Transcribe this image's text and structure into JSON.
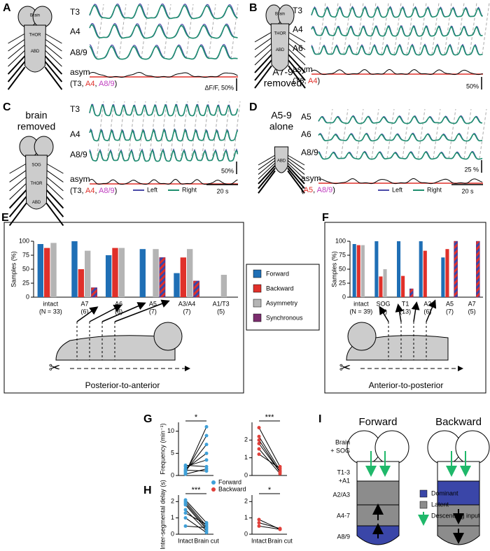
{
  "panels": {
    "A": {
      "label": "A",
      "cartoon": [
        "Brain",
        "THOR",
        "ABD"
      ],
      "traces": [
        "T3",
        "A4",
        "A8/9"
      ],
      "asym": "asym",
      "asym_parts": [
        "(T3, ",
        "A4",
        ", ",
        "A8/9",
        ")"
      ],
      "asym_colors": [
        "#000000",
        "#e0302a",
        "#000000",
        "#c040c0",
        "#000000"
      ],
      "scale": "ΔF/F, 50%"
    },
    "B": {
      "label": "B",
      "title": [
        "A7-9",
        "removed"
      ],
      "cartoon": [
        "Brain",
        "THOR",
        "ABD"
      ],
      "traces": [
        "T3",
        "A4",
        "A6"
      ],
      "asym": "asym",
      "asym_parts": [
        "(T3, ",
        "A4",
        ")"
      ],
      "asym_colors": [
        "#000000",
        "#e0302a",
        "#000000"
      ],
      "scale": "50%"
    },
    "C": {
      "label": "C",
      "title": [
        "brain",
        "removed"
      ],
      "cartoon": [
        "SOG",
        "THOR",
        "ABD"
      ],
      "traces": [
        "T3",
        "A4",
        "A8/9"
      ],
      "asym": "asym",
      "asym_parts": [
        "(T3, ",
        "A4",
        ", ",
        "A8/9",
        ")"
      ],
      "asym_colors": [
        "#000000",
        "#e0302a",
        "#000000",
        "#c040c0",
        "#000000"
      ],
      "scale": "50%",
      "legend": [
        "Left",
        "Right"
      ],
      "legend_colors": [
        "#4a4aa8",
        "#1f8f6f"
      ],
      "time": "20 s"
    },
    "D": {
      "label": "D",
      "title": [
        "A5-9",
        "alone"
      ],
      "cartoon": [
        "ABD"
      ],
      "traces": [
        "A5",
        "A6",
        "A8/9"
      ],
      "asym": "asym",
      "asym_parts": [
        "(",
        "A5",
        ", ",
        "A8/9",
        ")"
      ],
      "asym_colors": [
        "#000000",
        "#e0302a",
        "#000000",
        "#c040c0",
        "#000000"
      ],
      "scale": "25 %",
      "legend": [
        "Left",
        "Right"
      ],
      "legend_colors": [
        "#4a4aa8",
        "#1f8f6f"
      ],
      "time": "20 s"
    },
    "E": {
      "label": "E",
      "caption": "Posterior-to-anterior"
    },
    "F": {
      "label": "F",
      "caption": "Anterior-to-posterior"
    },
    "G": {
      "label": "G"
    },
    "H": {
      "label": "H"
    },
    "I": {
      "label": "I",
      "titles": [
        "Forward",
        "Backward"
      ],
      "rows": [
        "Brain",
        "+ SOG",
        "T1-3",
        "+A1",
        "A2/A3",
        "A4-7",
        "A8/9"
      ],
      "legend": [
        "Dominant",
        "Latent",
        "Descending input"
      ],
      "legend_colors": [
        "#3a46a8",
        "#8c8c8c",
        "#1fb86a"
      ]
    }
  },
  "chart_data": [
    {
      "type": "bar",
      "ylabel": "Samples (%)",
      "ylim": [
        0,
        100
      ],
      "yticks": [
        0,
        25,
        50,
        75,
        100
      ],
      "categories": [
        "intact",
        "A7",
        "A6",
        "A5",
        "A3/A4",
        "A1/T3"
      ],
      "category_counts": [
        "(N = 33)",
        "(6)",
        "(8)",
        "(7)",
        "(7)",
        "(5)"
      ],
      "series": [
        {
          "name": "Forward",
          "color": "#1f6fb5",
          "values": [
            95,
            100,
            75,
            86,
            43,
            null
          ]
        },
        {
          "name": "Backward",
          "color": "#e0302a",
          "values": [
            88,
            50,
            88,
            null,
            71,
            null
          ]
        },
        {
          "name": "Asymmetry",
          "color": "#b4b4b4",
          "values": [
            97,
            83,
            88,
            86,
            86,
            40
          ]
        },
        {
          "name": "Synchronous",
          "color": "#7b2d6e",
          "values": [
            null,
            17,
            null,
            71,
            29,
            null
          ]
        }
      ]
    },
    {
      "type": "bar",
      "ylabel": "Samples (%)",
      "ylim": [
        0,
        100
      ],
      "yticks": [
        0,
        25,
        50,
        75,
        100
      ],
      "categories": [
        "intact",
        "SOG",
        "T1",
        "A2",
        "A5",
        "A7"
      ],
      "category_counts": [
        "(N = 39)",
        "(8)",
        "(13)",
        "(6)",
        "(7)",
        "(5)"
      ],
      "series": [
        {
          "color": "#1f6fb5",
          "values": [
            95,
            100,
            100,
            100,
            71,
            null
          ]
        },
        {
          "color": "#e0302a",
          "values": [
            93,
            37,
            38,
            83,
            86,
            null
          ]
        },
        {
          "color": "#b4b4b4",
          "values": [
            93,
            50,
            null,
            null,
            null,
            null
          ]
        },
        {
          "color": "#7b2d6e",
          "values": [
            null,
            null,
            15,
            null,
            100,
            100
          ]
        }
      ]
    },
    {
      "type": "paired",
      "ylabel": "Frequency (min⁻¹)",
      "ylim": [
        0,
        12
      ],
      "yticks": [
        0,
        5,
        10
      ],
      "color": "#3fa0d8",
      "significance": "*",
      "series": [
        {
          "values": [
            0.5,
            11
          ]
        },
        {
          "values": [
            0.8,
            9
          ]
        },
        {
          "values": [
            1.0,
            7
          ]
        },
        {
          "values": [
            1.5,
            5
          ]
        },
        {
          "values": [
            2.0,
            3.5
          ]
        },
        {
          "values": [
            2.3,
            2
          ]
        },
        {
          "values": [
            0.3,
            1.5
          ]
        },
        {
          "values": [
            1.2,
            1
          ]
        }
      ]
    },
    {
      "type": "paired",
      "ylim": [
        0,
        3
      ],
      "yticks": [
        0,
        1,
        2
      ],
      "color": "#e0403a",
      "significance": "***",
      "legend": [
        {
          "name": "Forward",
          "color": "#3fa0d8"
        },
        {
          "name": "Backward",
          "color": "#e0403a"
        }
      ],
      "series": [
        {
          "values": [
            2.7,
            0.5
          ]
        },
        {
          "values": [
            2.2,
            0.3
          ]
        },
        {
          "values": [
            1.8,
            0.2
          ]
        },
        {
          "values": [
            1.5,
            0.1
          ]
        },
        {
          "values": [
            1.2,
            0.4
          ]
        },
        {
          "values": [
            2.0,
            0.2
          ]
        }
      ]
    },
    {
      "type": "paired",
      "ylabel": "Inter-segmental delay (s)",
      "ylim": [
        0,
        2.4
      ],
      "yticks": [
        0,
        1,
        2
      ],
      "color": "#3fa0d8",
      "significance": "***",
      "categories": [
        "Intact",
        "Brain cut"
      ],
      "series": [
        {
          "values": [
            2.1,
            0.7
          ]
        },
        {
          "values": [
            2.0,
            0.5
          ]
        },
        {
          "values": [
            1.9,
            0.4
          ]
        },
        {
          "values": [
            1.8,
            0.3
          ]
        },
        {
          "values": [
            1.5,
            0.2
          ]
        },
        {
          "values": [
            1.3,
            0.6
          ]
        },
        {
          "values": [
            1.0,
            0.1
          ]
        },
        {
          "values": [
            0.5,
            0.4
          ]
        }
      ]
    },
    {
      "type": "paired",
      "ylim": [
        0,
        2.4
      ],
      "yticks": [
        0,
        1,
        2
      ],
      "color": "#e0403a",
      "significance": "*",
      "categories": [
        "Intact",
        "Brain cut"
      ],
      "series": [
        {
          "values": [
            0.9,
            0.3
          ]
        },
        {
          "values": [
            0.7,
            0.35
          ]
        },
        {
          "values": [
            0.5,
            0.3
          ]
        }
      ]
    }
  ]
}
